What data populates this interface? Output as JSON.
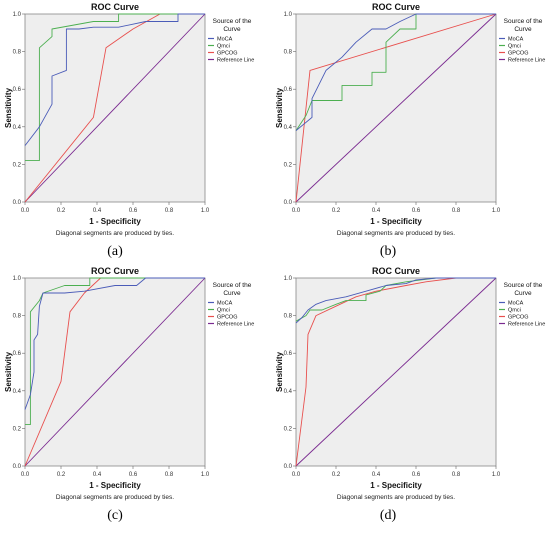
{
  "chart_data": [
    {
      "type": "line",
      "panel_label": "(a)",
      "title": "ROC Curve",
      "xlabel": "1 - Specificity",
      "ylabel": "Sensitivity",
      "footnote": "Diagonal segments are produced by ties.",
      "legend_title": "Source of the Curve",
      "legend_position": "right",
      "xlim": [
        0,
        1
      ],
      "ylim": [
        0,
        1
      ],
      "xticks": [
        "0.0",
        "0.2",
        "0.4",
        "0.6",
        "0.8",
        "1.0"
      ],
      "yticks": [
        "0.0",
        "0.2",
        "0.4",
        "0.6",
        "0.8",
        "1.0"
      ],
      "series": [
        {
          "name": "MoCA",
          "color": "#4b5cb8",
          "points": [
            [
              0,
              0.3
            ],
            [
              0.08,
              0.4
            ],
            [
              0.15,
              0.52
            ],
            [
              0.15,
              0.67
            ],
            [
              0.23,
              0.7
            ],
            [
              0.23,
              0.85
            ],
            [
              0.23,
              0.92
            ],
            [
              0.3,
              0.92
            ],
            [
              0.38,
              0.93
            ],
            [
              0.52,
              0.93
            ],
            [
              0.67,
              0.96
            ],
            [
              0.85,
              0.96
            ],
            [
              0.85,
              1.0
            ],
            [
              1,
              1
            ]
          ]
        },
        {
          "name": "Qmci",
          "color": "#4caf50",
          "points": [
            [
              0,
              0.22
            ],
            [
              0.08,
              0.22
            ],
            [
              0.08,
              0.82
            ],
            [
              0.15,
              0.88
            ],
            [
              0.15,
              0.92
            ],
            [
              0.38,
              0.96
            ],
            [
              0.52,
              0.96
            ],
            [
              0.52,
              1.0
            ],
            [
              1,
              1
            ]
          ]
        },
        {
          "name": "GPCOG",
          "color": "#e8504e",
          "points": [
            [
              0,
              0
            ],
            [
              0.38,
              0.45
            ],
            [
              0.45,
              0.82
            ],
            [
              0.6,
              0.92
            ],
            [
              0.75,
              1.0
            ],
            [
              1,
              1
            ]
          ]
        },
        {
          "name": "Reference Line",
          "color": "#7a2a90",
          "points": [
            [
              0,
              0
            ],
            [
              1,
              1
            ]
          ]
        }
      ]
    },
    {
      "type": "line",
      "panel_label": "(b)",
      "title": "ROC Curve",
      "xlabel": "1 - Specificity",
      "ylabel": "Sensitivity",
      "footnote": "Diagonal segments are produced by ties.",
      "legend_title": "Source of the Curve",
      "legend_position": "right",
      "xlim": [
        0,
        1
      ],
      "ylim": [
        0,
        1
      ],
      "xticks": [
        "0.0",
        "0.2",
        "0.4",
        "0.6",
        "0.8",
        "1.0"
      ],
      "yticks": [
        "0.0",
        "0.2",
        "0.4",
        "0.6",
        "0.8",
        "1.0"
      ],
      "series": [
        {
          "name": "MoCA",
          "color": "#4b5cb8",
          "points": [
            [
              0,
              0.38
            ],
            [
              0.08,
              0.45
            ],
            [
              0.08,
              0.55
            ],
            [
              0.15,
              0.7
            ],
            [
              0.23,
              0.77
            ],
            [
              0.3,
              0.85
            ],
            [
              0.38,
              0.92
            ],
            [
              0.45,
              0.92
            ],
            [
              0.52,
              0.96
            ],
            [
              0.6,
              1.0
            ],
            [
              1,
              1
            ]
          ]
        },
        {
          "name": "Qmci",
          "color": "#4caf50",
          "points": [
            [
              0,
              0.38
            ],
            [
              0.05,
              0.46
            ],
            [
              0.08,
              0.54
            ],
            [
              0.23,
              0.54
            ],
            [
              0.23,
              0.62
            ],
            [
              0.38,
              0.62
            ],
            [
              0.38,
              0.69
            ],
            [
              0.45,
              0.69
            ],
            [
              0.45,
              0.85
            ],
            [
              0.52,
              0.92
            ],
            [
              0.6,
              0.92
            ],
            [
              0.6,
              1.0
            ],
            [
              1,
              1
            ]
          ]
        },
        {
          "name": "GPCOG",
          "color": "#e8504e",
          "points": [
            [
              0,
              0
            ],
            [
              0.07,
              0.7
            ],
            [
              1,
              1
            ]
          ]
        },
        {
          "name": "Reference Line",
          "color": "#7a2a90",
          "points": [
            [
              0,
              0
            ],
            [
              1,
              1
            ]
          ]
        }
      ]
    },
    {
      "type": "line",
      "panel_label": "(c)",
      "title": "ROC Curve",
      "xlabel": "1 - Specificity",
      "ylabel": "Sensitivity",
      "footnote": "Diagonal segments are produced by ties.",
      "legend_title": "Source of the Curve",
      "legend_position": "right",
      "xlim": [
        0,
        1
      ],
      "ylim": [
        0,
        1
      ],
      "xticks": [
        "0.0",
        "0.2",
        "0.4",
        "0.6",
        "0.8",
        "1.0"
      ],
      "yticks": [
        "0.0",
        "0.2",
        "0.4",
        "0.6",
        "0.8",
        "1.0"
      ],
      "series": [
        {
          "name": "MoCA",
          "color": "#4b5cb8",
          "points": [
            [
              0,
              0.3
            ],
            [
              0.03,
              0.38
            ],
            [
              0.05,
              0.5
            ],
            [
              0.05,
              0.67
            ],
            [
              0.07,
              0.7
            ],
            [
              0.08,
              0.85
            ],
            [
              0.1,
              0.92
            ],
            [
              0.22,
              0.92
            ],
            [
              0.33,
              0.93
            ],
            [
              0.5,
              0.96
            ],
            [
              0.62,
              0.96
            ],
            [
              0.67,
              1.0
            ],
            [
              1,
              1
            ]
          ]
        },
        {
          "name": "Qmci",
          "color": "#4caf50",
          "points": [
            [
              0,
              0.22
            ],
            [
              0.03,
              0.22
            ],
            [
              0.03,
              0.82
            ],
            [
              0.08,
              0.88
            ],
            [
              0.1,
              0.92
            ],
            [
              0.22,
              0.96
            ],
            [
              0.36,
              0.96
            ],
            [
              0.36,
              1.0
            ],
            [
              1,
              1
            ]
          ]
        },
        {
          "name": "GPCOG",
          "color": "#e8504e",
          "points": [
            [
              0,
              0
            ],
            [
              0.2,
              0.45
            ],
            [
              0.25,
              0.82
            ],
            [
              0.33,
              0.92
            ],
            [
              0.42,
              1.0
            ],
            [
              1,
              1
            ]
          ]
        },
        {
          "name": "Reference Line",
          "color": "#7a2a90",
          "points": [
            [
              0,
              0
            ],
            [
              1,
              1
            ]
          ]
        }
      ]
    },
    {
      "type": "line",
      "panel_label": "(d)",
      "title": "ROC Curve",
      "xlabel": "1 - Specificity",
      "ylabel": "Sensitivity",
      "footnote": "Diagonal segments are produced by ties.",
      "legend_title": "Source of the Curve",
      "legend_position": "right",
      "xlim": [
        0,
        1
      ],
      "ylim": [
        0,
        1
      ],
      "xticks": [
        "0.0",
        "0.2",
        "0.4",
        "0.6",
        "0.8",
        "1.0"
      ],
      "yticks": [
        "0.0",
        "0.2",
        "0.4",
        "0.6",
        "0.8",
        "1.0"
      ],
      "series": [
        {
          "name": "MoCA",
          "color": "#4b5cb8",
          "points": [
            [
              0,
              0.76
            ],
            [
              0.03,
              0.79
            ],
            [
              0.06,
              0.83
            ],
            [
              0.1,
              0.86
            ],
            [
              0.15,
              0.88
            ],
            [
              0.25,
              0.9
            ],
            [
              0.35,
              0.93
            ],
            [
              0.45,
              0.96
            ],
            [
              0.55,
              0.97
            ],
            [
              0.6,
              0.99
            ],
            [
              0.7,
              1.0
            ],
            [
              1,
              1
            ]
          ]
        },
        {
          "name": "Qmci",
          "color": "#4caf50",
          "points": [
            [
              0,
              0.77
            ],
            [
              0.05,
              0.8
            ],
            [
              0.07,
              0.83
            ],
            [
              0.13,
              0.83
            ],
            [
              0.2,
              0.86
            ],
            [
              0.25,
              0.88
            ],
            [
              0.35,
              0.88
            ],
            [
              0.35,
              0.91
            ],
            [
              0.42,
              0.93
            ],
            [
              0.45,
              0.96
            ],
            [
              0.55,
              0.98
            ],
            [
              0.7,
              1.0
            ],
            [
              1,
              1
            ]
          ]
        },
        {
          "name": "GPCOG",
          "color": "#e8504e",
          "points": [
            [
              0,
              0
            ],
            [
              0.05,
              0.42
            ],
            [
              0.06,
              0.7
            ],
            [
              0.1,
              0.8
            ],
            [
              0.2,
              0.85
            ],
            [
              0.3,
              0.9
            ],
            [
              0.4,
              0.93
            ],
            [
              0.55,
              0.96
            ],
            [
              0.65,
              0.98
            ],
            [
              0.8,
              1.0
            ],
            [
              1,
              1
            ]
          ]
        },
        {
          "name": "Reference Line",
          "color": "#7a2a90",
          "points": [
            [
              0,
              0
            ],
            [
              1,
              1
            ]
          ]
        }
      ]
    }
  ]
}
